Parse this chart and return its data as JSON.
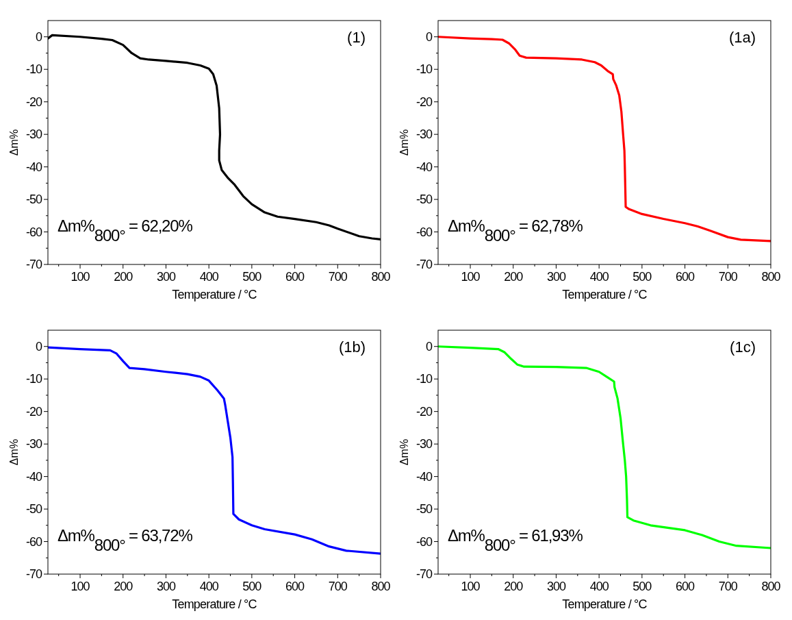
{
  "chart_data": [
    {
      "type": "line",
      "title": "(1)",
      "xlabel": "Temperature / °C",
      "ylabel": "Δm%",
      "annotations": [
        "Δm%$_{800°}$ = 62,20%"
      ],
      "xlim": [
        25,
        800
      ],
      "ylim": [
        -70,
        5
      ],
      "xticks": [
        {
          "value": 50,
          "label": null
        },
        100,
        {
          "value": 150,
          "label": null
        },
        200,
        {
          "value": 250,
          "label": null
        },
        300,
        {
          "value": 350,
          "label": null
        },
        400,
        {
          "value": 450,
          "label": null
        },
        500,
        {
          "value": 550,
          "label": null
        },
        600,
        {
          "value": 650,
          "label": null
        },
        700,
        {
          "value": 750,
          "label": null
        },
        800
      ],
      "yticks": [
        -70,
        {
          "value": -65,
          "label": null
        },
        -60,
        {
          "value": -55,
          "label": null
        },
        -50,
        {
          "value": -45,
          "label": null
        },
        -40,
        {
          "value": -35,
          "label": null
        },
        -30,
        {
          "value": -25,
          "label": null
        },
        -20,
        {
          "value": -15,
          "label": null
        },
        -10,
        {
          "value": -5,
          "label": null
        },
        0
      ],
      "series": [
        {
          "color": "#000000",
          "x": [
            25,
            35,
            100,
            150,
            175,
            200,
            220,
            240,
            260,
            300,
            350,
            380,
            400,
            410,
            418,
            424,
            426,
            424,
            424,
            430,
            445,
            460,
            480,
            500,
            530,
            560,
            600,
            650,
            680,
            700,
            750,
            780,
            800
          ],
          "values": [
            -0.5,
            0.5,
            0,
            -0.6,
            -1,
            -2.5,
            -5,
            -6.6,
            -7,
            -7.4,
            -8,
            -8.8,
            -9.8,
            -11.5,
            -15,
            -22,
            -30,
            -35,
            -38,
            -41,
            -43.5,
            -45.5,
            -49,
            -51.5,
            -54,
            -55.3,
            -56,
            -57,
            -58,
            -59,
            -61.3,
            -62,
            -62.3
          ]
        }
      ]
    },
    {
      "type": "line",
      "title": "(1a)",
      "xlabel": "Temperature / °C",
      "ylabel": "Δm%",
      "annotations": [
        "Δm%$_{800°}$ = 62,78%"
      ],
      "xlim": [
        25,
        800
      ],
      "ylim": [
        -70,
        5
      ],
      "xticks": [
        {
          "value": 50,
          "label": null
        },
        100,
        {
          "value": 150,
          "label": null
        },
        200,
        {
          "value": 250,
          "label": null
        },
        300,
        {
          "value": 350,
          "label": null
        },
        400,
        {
          "value": 450,
          "label": null
        },
        500,
        {
          "value": 550,
          "label": null
        },
        600,
        {
          "value": 650,
          "label": null
        },
        700,
        {
          "value": 750,
          "label": null
        },
        800
      ],
      "yticks": [
        -70,
        {
          "value": -65,
          "label": null
        },
        -60,
        {
          "value": -55,
          "label": null
        },
        -50,
        {
          "value": -45,
          "label": null
        },
        -40,
        {
          "value": -35,
          "label": null
        },
        -30,
        {
          "value": -25,
          "label": null
        },
        -20,
        {
          "value": -15,
          "label": null
        },
        -10,
        {
          "value": -5,
          "label": null
        },
        0
      ],
      "series": [
        {
          "color": "#ff0000",
          "x": [
            25,
            100,
            150,
            175,
            190,
            205,
            215,
            230,
            300,
            360,
            390,
            405,
            420,
            432,
            433,
            440,
            447,
            452,
            456,
            459,
            460,
            461,
            462,
            470,
            500,
            550,
            600,
            630,
            660,
            700,
            730,
            800
          ],
          "values": [
            0,
            -0.5,
            -0.7,
            -0.9,
            -2,
            -4,
            -5.8,
            -6.4,
            -6.6,
            -7,
            -7.8,
            -8.8,
            -10.5,
            -11.5,
            -13,
            -15,
            -18,
            -23,
            -30,
            -35,
            -40,
            -46,
            -52.3,
            -53,
            -54.5,
            -56,
            -57.3,
            -58.3,
            -59.7,
            -61.6,
            -62.4,
            -62.8
          ]
        }
      ]
    },
    {
      "type": "line",
      "title": "(1b)",
      "xlabel": "Temperature / °C",
      "ylabel": "Δm%",
      "annotations": [
        "Δm%$_{800°}$ = 63,72%"
      ],
      "xlim": [
        25,
        800
      ],
      "ylim": [
        -70,
        5
      ],
      "xticks": [
        {
          "value": 50,
          "label": null
        },
        100,
        {
          "value": 150,
          "label": null
        },
        200,
        {
          "value": 250,
          "label": null
        },
        300,
        {
          "value": 350,
          "label": null
        },
        400,
        {
          "value": 450,
          "label": null
        },
        500,
        {
          "value": 550,
          "label": null
        },
        600,
        {
          "value": 650,
          "label": null
        },
        700,
        {
          "value": 750,
          "label": null
        },
        800
      ],
      "yticks": [
        -70,
        {
          "value": -65,
          "label": null
        },
        -60,
        {
          "value": -55,
          "label": null
        },
        -50,
        {
          "value": -45,
          "label": null
        },
        -40,
        {
          "value": -35,
          "label": null
        },
        -30,
        {
          "value": -25,
          "label": null
        },
        -20,
        {
          "value": -15,
          "label": null
        },
        -10,
        {
          "value": -5,
          "label": null
        },
        0
      ],
      "series": [
        {
          "color": "#0000ff",
          "x": [
            25,
            100,
            170,
            185,
            200,
            215,
            250,
            300,
            350,
            380,
            400,
            420,
            435,
            438,
            444,
            450,
            455,
            456,
            457,
            470,
            500,
            530,
            600,
            640,
            680,
            720,
            800
          ],
          "values": [
            -0.3,
            -0.8,
            -1.2,
            -2.2,
            -4.5,
            -6.6,
            -7,
            -7.8,
            -8.5,
            -9.3,
            -10.5,
            -13.5,
            -16,
            -18,
            -23,
            -28,
            -34,
            -42,
            -51.5,
            -53.2,
            -55,
            -56.2,
            -57.8,
            -59.3,
            -61.5,
            -62.8,
            -63.7
          ]
        }
      ]
    },
    {
      "type": "line",
      "title": "(1c)",
      "xlabel": "Temperature / °C",
      "ylabel": "Δm%",
      "annotations": [
        "Δm%$_{800°}$ = 61,93%"
      ],
      "xlim": [
        25,
        800
      ],
      "ylim": [
        -70,
        5
      ],
      "xticks": [
        {
          "value": 50,
          "label": null
        },
        100,
        {
          "value": 150,
          "label": null
        },
        200,
        {
          "value": 250,
          "label": null
        },
        300,
        {
          "value": 350,
          "label": null
        },
        400,
        {
          "value": 450,
          "label": null
        },
        500,
        {
          "value": 550,
          "label": null
        },
        600,
        {
          "value": 650,
          "label": null
        },
        700,
        {
          "value": 750,
          "label": null
        },
        800
      ],
      "yticks": [
        -70,
        {
          "value": -65,
          "label": null
        },
        -60,
        {
          "value": -55,
          "label": null
        },
        -50,
        {
          "value": -45,
          "label": null
        },
        -40,
        {
          "value": -35,
          "label": null
        },
        -30,
        {
          "value": -25,
          "label": null
        },
        -20,
        {
          "value": -15,
          "label": null
        },
        -10,
        {
          "value": -5,
          "label": null
        },
        0
      ],
      "series": [
        {
          "color": "#00ff00",
          "x": [
            25,
            100,
            165,
            180,
            195,
            210,
            225,
            300,
            370,
            400,
            420,
            435,
            436,
            443,
            450,
            456,
            460,
            463,
            465,
            466,
            480,
            520,
            600,
            640,
            680,
            720,
            800
          ],
          "values": [
            0,
            -0.4,
            -0.8,
            -1.8,
            -3.8,
            -5.6,
            -6.2,
            -6.3,
            -6.6,
            -7.8,
            -9.5,
            -10.8,
            -12.5,
            -16,
            -22,
            -30,
            -35,
            -40,
            -47,
            -52.5,
            -53.5,
            -55,
            -56.5,
            -58,
            -60,
            -61.3,
            -62
          ]
        }
      ]
    }
  ]
}
